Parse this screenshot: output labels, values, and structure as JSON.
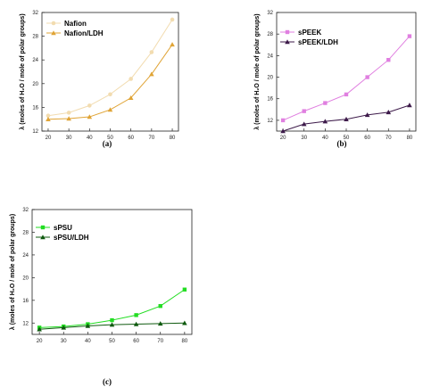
{
  "chart_data": [
    {
      "type": "line",
      "panel_label": "(a)",
      "xlabel": "",
      "ylabel": "λ (moles of H₂O / mole of polar groups)",
      "x": [
        20,
        30,
        40,
        50,
        60,
        70,
        80
      ],
      "xticks": [
        "20",
        "30",
        "40",
        "50",
        "60",
        "70",
        "80"
      ],
      "ylim": [
        12,
        32
      ],
      "yticks": [
        "12",
        "16",
        "20",
        "24",
        "28",
        "32"
      ],
      "legend_position": "top-left",
      "series": [
        {
          "name": "Nafion",
          "marker": "circle",
          "color": "#f2dcb0",
          "values": [
            14.6,
            15.1,
            16.3,
            18.2,
            20.8,
            25.3,
            30.8
          ]
        },
        {
          "name": "Nafion/LDH",
          "marker": "triangle",
          "color": "#e0a436",
          "values": [
            14.0,
            14.1,
            14.4,
            15.6,
            17.6,
            21.6,
            26.6
          ]
        }
      ]
    },
    {
      "type": "line",
      "panel_label": "(b)",
      "xlabel": "",
      "ylabel": "λ (moles of H₂O / mole of polar groups)",
      "x": [
        20,
        30,
        40,
        50,
        60,
        70,
        80
      ],
      "xticks": [
        "20",
        "30",
        "40",
        "50",
        "60",
        "70",
        "80"
      ],
      "ylim": [
        10,
        32
      ],
      "yticks": [
        "12",
        "16",
        "20",
        "24",
        "28",
        "32"
      ],
      "legend_position": "top-left",
      "series": [
        {
          "name": "sPEEK",
          "marker": "square",
          "color": "#e07fe0",
          "values": [
            12.0,
            13.7,
            15.2,
            16.8,
            20.0,
            23.2,
            27.6
          ]
        },
        {
          "name": "sPEEK/LDH",
          "marker": "triangle",
          "color": "#3d1a4a",
          "values": [
            10.0,
            11.3,
            11.8,
            12.2,
            13.0,
            13.5,
            14.8
          ]
        }
      ]
    },
    {
      "type": "line",
      "panel_label": "(c)",
      "xlabel": "",
      "ylabel": "λ (moles of H₂O / mole of polar groups)",
      "x": [
        20,
        30,
        40,
        50,
        60,
        70,
        80
      ],
      "xticks": [
        "20",
        "30",
        "40",
        "50",
        "60",
        "70",
        "80"
      ],
      "ylim": [
        10,
        32
      ],
      "yticks": [
        "12",
        "16",
        "20",
        "24",
        "28",
        "32"
      ],
      "legend_position": "top-left",
      "series": [
        {
          "name": "sPSU",
          "marker": "square",
          "color": "#22dd22",
          "values": [
            11.2,
            11.4,
            11.8,
            12.5,
            13.4,
            15.0,
            17.9
          ]
        },
        {
          "name": "sPSU/LDH",
          "marker": "triangle",
          "color": "#0f5a0f",
          "values": [
            10.9,
            11.2,
            11.5,
            11.7,
            11.8,
            11.9,
            12.0
          ]
        }
      ]
    }
  ]
}
